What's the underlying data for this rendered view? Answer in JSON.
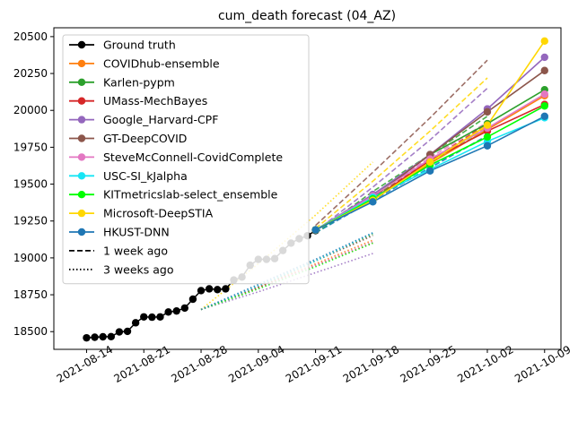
{
  "chart_data": {
    "type": "line",
    "title": "cum_death forecast (04_AZ)",
    "xlabel": "",
    "ylabel": "",
    "x_date_start": "2021-08-14",
    "x_range": [
      "2021-08-10",
      "2021-10-11"
    ],
    "ylim": [
      18380,
      20560
    ],
    "x_ticks": [
      "2021-08-14",
      "2021-08-21",
      "2021-08-28",
      "2021-09-04",
      "2021-09-11",
      "2021-09-18",
      "2021-09-25",
      "2021-10-02",
      "2021-10-09"
    ],
    "y_ticks": [
      18500,
      18750,
      19000,
      19250,
      19500,
      19750,
      20000,
      20250,
      20500
    ],
    "grid": false,
    "legend_placement": "upper-left",
    "ground_truth": {
      "name": "Ground truth",
      "color": "#000000",
      "x": [
        "2021-08-14",
        "2021-08-15",
        "2021-08-16",
        "2021-08-17",
        "2021-08-18",
        "2021-08-19",
        "2021-08-20",
        "2021-08-21",
        "2021-08-22",
        "2021-08-23",
        "2021-08-24",
        "2021-08-25",
        "2021-08-26",
        "2021-08-27",
        "2021-08-28",
        "2021-08-29",
        "2021-08-30",
        "2021-08-31",
        "2021-09-01",
        "2021-09-02",
        "2021-09-03",
        "2021-09-04",
        "2021-09-05",
        "2021-09-06",
        "2021-09-07",
        "2021-09-08",
        "2021-09-09",
        "2021-09-10",
        "2021-09-11"
      ],
      "y": [
        18458,
        18462,
        18465,
        18466,
        18498,
        18502,
        18560,
        18600,
        18598,
        18600,
        18633,
        18640,
        18660,
        18720,
        18778,
        18790,
        18785,
        18790,
        18850,
        18870,
        18950,
        18990,
        18990,
        18995,
        19050,
        19100,
        19130,
        19150,
        19185
      ]
    },
    "series": [
      {
        "name": "COVIDhub-ensemble",
        "color": "#ff7f0e",
        "x": [
          "2021-09-11",
          "2021-09-18",
          "2021-09-25",
          "2021-10-02",
          "2021-10-09"
        ],
        "y": [
          19190,
          19400,
          19640,
          19870,
          20100
        ],
        "one_week": {
          "x": [
            "2021-09-11",
            "2021-09-18",
            "2021-09-25",
            "2021-10-02"
          ],
          "y": [
            19170,
            19410,
            19650,
            19890
          ]
        },
        "three_weeks": {
          "x": [
            "2021-08-28",
            "2021-09-04",
            "2021-09-11",
            "2021-09-18"
          ],
          "y": [
            18650,
            18800,
            18960,
            19120
          ]
        }
      },
      {
        "name": "Karlen-pypm",
        "color": "#2ca02c",
        "x": [
          "2021-09-11",
          "2021-09-18",
          "2021-09-25",
          "2021-10-02",
          "2021-10-09"
        ],
        "y": [
          19190,
          19420,
          19700,
          19910,
          20140
        ],
        "one_week": {
          "x": [
            "2021-09-11",
            "2021-09-18",
            "2021-09-25",
            "2021-10-02"
          ],
          "y": [
            19170,
            19450,
            19700,
            19960
          ]
        },
        "three_weeks": {
          "x": [
            "2021-08-28",
            "2021-09-04",
            "2021-09-11",
            "2021-09-18"
          ],
          "y": [
            18650,
            18800,
            18980,
            19160
          ]
        }
      },
      {
        "name": "UMass-MechBayes",
        "color": "#d62728",
        "x": [
          "2021-09-11",
          "2021-09-18",
          "2021-09-25",
          "2021-10-02",
          "2021-10-09"
        ],
        "y": [
          19190,
          19400,
          19660,
          19860,
          20040
        ],
        "one_week": {
          "x": [
            "2021-09-11",
            "2021-09-18",
            "2021-09-25",
            "2021-10-02"
          ],
          "y": [
            19170,
            19420,
            19660,
            19910
          ]
        },
        "three_weeks": {
          "x": [
            "2021-08-28",
            "2021-09-04",
            "2021-09-11",
            "2021-09-18"
          ],
          "y": [
            18650,
            18800,
            18950,
            19100
          ]
        }
      },
      {
        "name": "Google_Harvard-CPF",
        "color": "#9467bd",
        "x": [
          "2021-09-11",
          "2021-09-18",
          "2021-09-25",
          "2021-10-02",
          "2021-10-09"
        ],
        "y": [
          19190,
          19430,
          19700,
          20010,
          20360
        ],
        "one_week": {
          "x": [
            "2021-09-11",
            "2021-09-18",
            "2021-09-25",
            "2021-10-02"
          ],
          "y": [
            19180,
            19480,
            19800,
            20150
          ]
        },
        "three_weeks": {
          "x": [
            "2021-08-28",
            "2021-09-04",
            "2021-09-11",
            "2021-09-18"
          ],
          "y": [
            18650,
            18770,
            18900,
            19030
          ]
        }
      },
      {
        "name": "GT-DeepCOVID",
        "color": "#8c564b",
        "x": [
          "2021-09-11",
          "2021-09-18",
          "2021-09-25",
          "2021-10-02",
          "2021-10-09"
        ],
        "y": [
          19190,
          19410,
          19700,
          19990,
          20270
        ],
        "one_week": {
          "x": [
            "2021-09-11",
            "2021-09-18",
            "2021-09-25",
            "2021-10-02"
          ],
          "y": [
            19220,
            19580,
            19950,
            20340
          ]
        },
        "three_weeks": {
          "x": [
            "2021-08-28",
            "2021-09-04",
            "2021-09-11",
            "2021-09-18"
          ],
          "y": [
            18650,
            18810,
            18980,
            19150
          ]
        }
      },
      {
        "name": "SteveMcConnell-CovidComplete",
        "color": "#e377c2",
        "x": [
          "2021-09-11",
          "2021-09-18",
          "2021-09-25",
          "2021-10-02",
          "2021-10-09"
        ],
        "y": [
          19190,
          19420,
          19670,
          19880,
          20110
        ],
        "one_week": {
          "x": [
            "2021-09-11",
            "2021-09-18",
            "2021-09-25",
            "2021-10-02"
          ],
          "y": [
            19170,
            19430,
            19680,
            19920
          ]
        },
        "three_weeks": {
          "x": [
            "2021-08-28",
            "2021-09-04",
            "2021-09-11",
            "2021-09-18"
          ],
          "y": [
            18650,
            18790,
            18950,
            19110
          ]
        }
      },
      {
        "name": "USC-SI_kJalpha",
        "color": "#17e5f5",
        "x": [
          "2021-09-11",
          "2021-09-18",
          "2021-09-25",
          "2021-10-02",
          "2021-10-09"
        ],
        "y": [
          19190,
          19410,
          19600,
          19790,
          19950
        ],
        "one_week": {
          "x": [
            "2021-09-11",
            "2021-09-18",
            "2021-09-25",
            "2021-10-02"
          ],
          "y": [
            19170,
            19400,
            19620,
            19820
          ]
        },
        "three_weeks": {
          "x": [
            "2021-08-28",
            "2021-09-04",
            "2021-09-11",
            "2021-09-18"
          ],
          "y": [
            18650,
            18810,
            18980,
            19170
          ]
        }
      },
      {
        "name": "KITmetricslab-select_ensemble",
        "color": "#00ff00",
        "x": [
          "2021-09-11",
          "2021-09-18",
          "2021-09-25",
          "2021-10-02",
          "2021-10-09"
        ],
        "y": [
          19190,
          19400,
          19630,
          19820,
          20030
        ],
        "one_week": {
          "x": [
            "2021-09-11",
            "2021-09-18",
            "2021-09-25",
            "2021-10-02"
          ],
          "y": [
            19170,
            19410,
            19650,
            19870
          ]
        },
        "three_weeks": {
          "x": [
            "2021-08-28",
            "2021-09-04",
            "2021-09-11",
            "2021-09-18"
          ],
          "y": [
            18650,
            18790,
            18940,
            19100
          ]
        }
      },
      {
        "name": "Microsoft-DeepSTIA",
        "color": "#ffd700",
        "x": [
          "2021-09-11",
          "2021-09-18",
          "2021-09-25",
          "2021-10-02",
          "2021-10-09"
        ],
        "y": [
          19190,
          19390,
          19650,
          19900,
          20470
        ],
        "one_week": {
          "x": [
            "2021-09-11",
            "2021-09-18",
            "2021-09-25",
            "2021-10-02"
          ],
          "y": [
            19200,
            19520,
            19860,
            20220
          ]
        },
        "three_weeks": {
          "x": [
            "2021-08-28",
            "2021-09-04",
            "2021-09-11",
            "2021-09-18"
          ],
          "y": [
            18650,
            18960,
            19290,
            19650
          ]
        }
      },
      {
        "name": "HKUST-DNN",
        "color": "#1f77b4",
        "x": [
          "2021-09-11",
          "2021-09-18",
          "2021-09-25",
          "2021-10-02",
          "2021-10-09"
        ],
        "y": [
          19190,
          19380,
          19590,
          19760,
          19960
        ],
        "one_week": {
          "x": [
            "2021-09-11",
            "2021-09-18",
            "2021-09-25",
            "2021-10-02"
          ],
          "y": [
            19170,
            19390,
            19610,
            19830
          ]
        },
        "three_weeks": {
          "x": [
            "2021-08-28",
            "2021-09-04",
            "2021-09-11",
            "2021-09-18"
          ],
          "y": [
            18650,
            18820,
            18990,
            19170
          ]
        }
      }
    ],
    "legend": {
      "one_week_label": "1 week ago",
      "three_weeks_label": "3 weeks ago"
    }
  }
}
